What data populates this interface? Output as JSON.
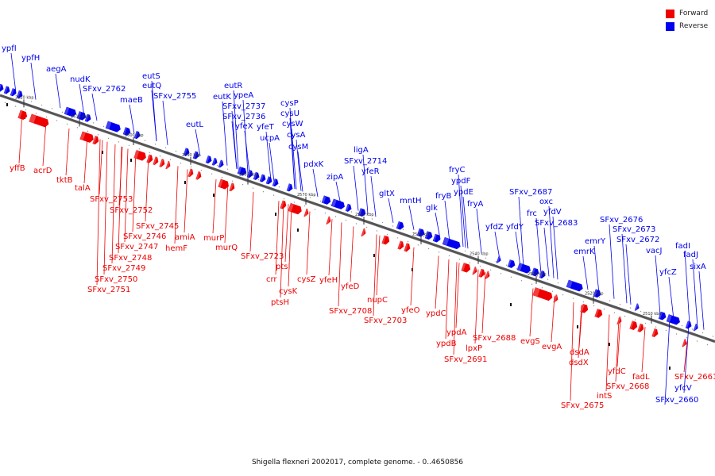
{
  "colors": {
    "forward": "#ee0000",
    "reverse": "#0000ee",
    "backbone": "#8a8a8a"
  },
  "legend": [
    {
      "key": "forward",
      "label": "Forward"
    },
    {
      "key": "reverse",
      "label": "Reverse"
    }
  ],
  "caption": "Shigella flexneri 2002017, complete genome. - 0..4650856",
  "ticks": [
    "2620 kbp",
    "2610 kbp",
    "2600 kbp",
    "2590 kbp",
    "2580 kbp",
    "2570 kbp",
    "2560 kbp",
    "2550 kbp",
    "2540 kbp",
    "2530 kbp",
    "2520 kbp",
    "2510 kbp"
  ],
  "reverse_genes": [
    "ypfI",
    "ypfH",
    "aegA",
    "nudK",
    "SFxv_2762",
    "eutS",
    "eutQ",
    "maeB",
    "SFxv_2755",
    "eutL",
    "eutR",
    "eutK",
    "ypeA",
    "SFxv_2737",
    "SFxv_2736",
    "yfeX",
    "cysP",
    "cysU",
    "yfeT",
    "cysW",
    "ucpA",
    "cysA",
    "cysM",
    "pdxK",
    "ligA",
    "SFxv_2714",
    "zipA",
    "yfeR",
    "gltX",
    "mntH",
    "fryC",
    "ypdF",
    "fryB",
    "ypdE",
    "glk",
    "fryA",
    "SFxv_2687",
    "oxc",
    "frc",
    "yfdZ",
    "yfdY",
    "yfdV",
    "SFxv_2683",
    "SFxv_2676",
    "emrY",
    "SFxv_2673",
    "SFxv_2672",
    "emrK",
    "vacJ",
    "fadI",
    "fadJ",
    "yfcZ",
    "sixA",
    "yfcV",
    "SFxv_2660"
  ],
  "forward_genes": [
    "yffB",
    "acrD",
    "tktB",
    "talA",
    "SFxv_2753",
    "SFxv_2752",
    "SFxv_2745",
    "SFxv_2746",
    "SFxv_2747",
    "SFxv_2748",
    "SFxv_2749",
    "SFxv_2750",
    "SFxv_2751",
    "amiA",
    "hemF",
    "murP",
    "murQ",
    "SFxv_2723",
    "ptsI",
    "crr",
    "cysZ",
    "cysK",
    "ptsH",
    "yfeH",
    "yfeD",
    "SFxv_2708",
    "nupC",
    "SFxv_2703",
    "yfeO",
    "ypdC",
    "ypdA",
    "ypdB",
    "lpxP",
    "SFxv_2688",
    "SFxv_2691",
    "evgS",
    "evgA",
    "dsdA",
    "dsdX",
    "yfdC",
    "fadL",
    "SFxv_2668",
    "intS",
    "SFxv_2675",
    "SFxv_2661"
  ]
}
